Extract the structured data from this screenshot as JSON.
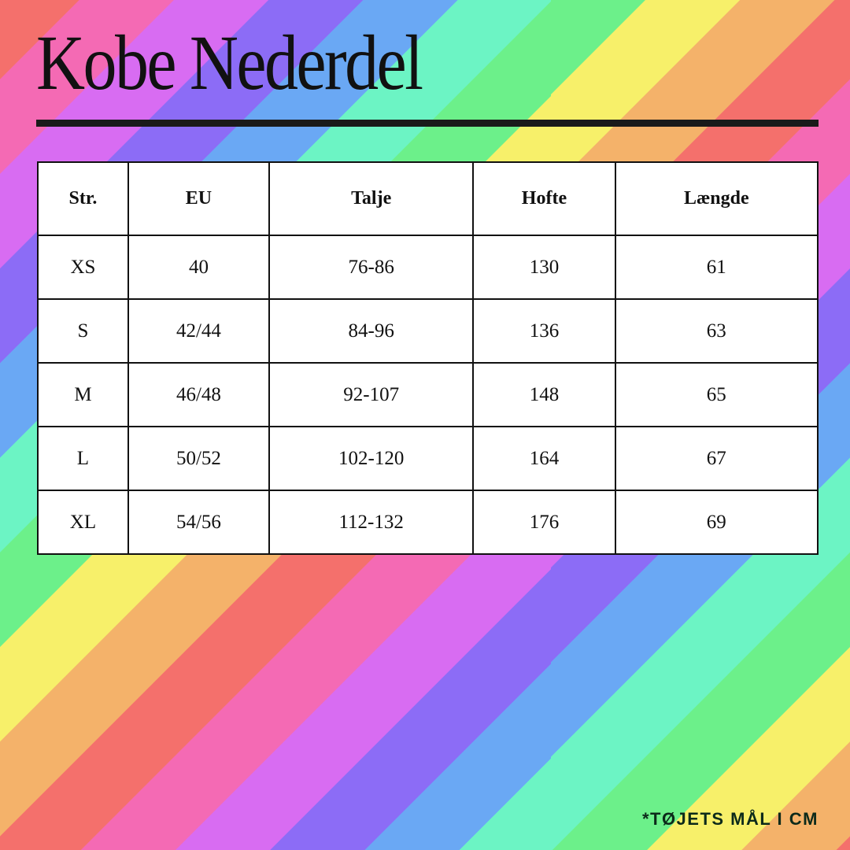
{
  "title": "Kobe Nederdel",
  "table": {
    "headers": [
      "Str.",
      "EU",
      "Talje",
      "Hofte",
      "Længde"
    ],
    "rows": [
      [
        "XS",
        "40",
        "76-86",
        "130",
        "61"
      ],
      [
        "S",
        "42/44",
        "84-96",
        "136",
        "63"
      ],
      [
        "M",
        "46/48",
        "92-107",
        "148",
        "65"
      ],
      [
        "L",
        "50/52",
        "102-120",
        "164",
        "67"
      ],
      [
        "XL",
        "54/56",
        "112-132",
        "176",
        "69"
      ]
    ]
  },
  "note": "*TØJETS MÅL I CM",
  "colors": {
    "stripes": [
      "#6cf08a",
      "#f7f06a",
      "#f4b26a",
      "#f4706c",
      "#f46ab4",
      "#d86cf2",
      "#8c6cf6",
      "#6aa8f4",
      "#6cf4c4"
    ],
    "text": "#111111"
  }
}
